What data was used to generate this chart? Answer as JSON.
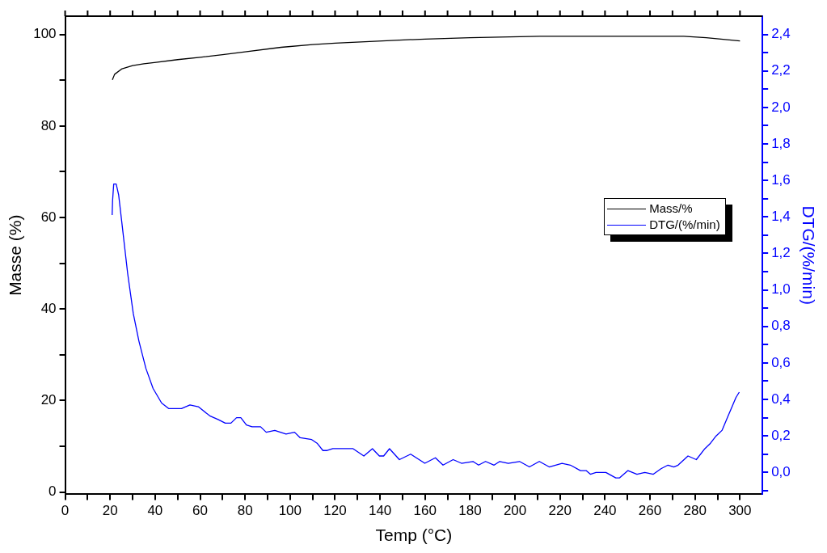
{
  "chart_data": {
    "type": "line",
    "xlabel": "Temp (°C)",
    "ylabel": "Masse (%)",
    "y2label": "DTG/(%/min)",
    "xlim": [
      0,
      310
    ],
    "xticks": [
      0,
      {
        "value": 10,
        "label": null
      },
      20,
      {
        "value": 30,
        "label": null
      },
      40,
      {
        "value": 50,
        "label": null
      },
      60,
      {
        "value": 70,
        "label": null
      },
      80,
      {
        "value": 90,
        "label": null
      },
      100,
      {
        "value": 110,
        "label": null
      },
      120,
      {
        "value": 130,
        "label": null
      },
      140,
      {
        "value": 150,
        "label": null
      },
      160,
      {
        "value": 170,
        "label": null
      },
      180,
      {
        "value": 190,
        "label": null
      },
      200,
      {
        "value": 210,
        "label": null
      },
      220,
      {
        "value": 230,
        "label": null
      },
      240,
      {
        "value": 250,
        "label": null
      },
      260,
      {
        "value": 270,
        "label": null
      },
      280,
      {
        "value": 290,
        "label": null
      },
      300
    ],
    "ylim": [
      -0.5,
      104
    ],
    "yticks": [
      0,
      {
        "value": 10,
        "label": null
      },
      20,
      {
        "value": 30,
        "label": null
      },
      40,
      {
        "value": 50,
        "label": null
      },
      60,
      {
        "value": 70,
        "label": null
      },
      80,
      {
        "value": 90,
        "label": null
      },
      100
    ],
    "y2lim": [
      -0.12,
      2.5
    ],
    "y2ticks": [
      {
        "value": -0.1,
        "label": null
      },
      {
        "value": 0,
        "label": "0,0"
      },
      {
        "value": 0.1,
        "label": null
      },
      {
        "value": 0.2,
        "label": "0,2"
      },
      {
        "value": 0.3,
        "label": null
      },
      {
        "value": 0.4,
        "label": "0,4"
      },
      {
        "value": 0.5,
        "label": null
      },
      {
        "value": 0.6,
        "label": "0,6"
      },
      {
        "value": 0.7,
        "label": null
      },
      {
        "value": 0.8,
        "label": "0,8"
      },
      {
        "value": 0.9,
        "label": null
      },
      {
        "value": 1.0,
        "label": "1,0"
      },
      {
        "value": 1.1,
        "label": null
      },
      {
        "value": 1.2,
        "label": "1,2"
      },
      {
        "value": 1.3,
        "label": null
      },
      {
        "value": 1.4,
        "label": "1,4"
      },
      {
        "value": 1.5,
        "label": null
      },
      {
        "value": 1.6,
        "label": "1,6"
      },
      {
        "value": 1.7,
        "label": null
      },
      {
        "value": 1.8,
        "label": "1,8"
      },
      {
        "value": 1.9,
        "label": null
      },
      {
        "value": 2.0,
        "label": "2,0"
      },
      {
        "value": 2.1,
        "label": null
      },
      {
        "value": 2.2,
        "label": "2,2"
      },
      {
        "value": 2.3,
        "label": null
      },
      {
        "value": 2.4,
        "label": "2,4"
      }
    ],
    "legend": "right",
    "marker": "none",
    "line_style": "solid",
    "series": [
      {
        "name": "Mass/%",
        "color": "#000000",
        "x": [
          21,
          22,
          25.3,
          30,
          35,
          40.4,
          50,
          60,
          70,
          80,
          96,
          110,
          120,
          141,
          160,
          180,
          211,
          240,
          275,
          285,
          300
        ],
        "values": [
          90.1,
          91.3,
          92.5,
          93.2,
          93.6,
          93.9,
          94.5,
          95.0,
          95.6,
          96.2,
          97.2,
          97.8,
          98.1,
          98.6,
          99.0,
          99.3,
          99.6,
          99.6,
          99.6,
          99.3,
          98.6
        ]
      },
      {
        "name": "DTG/(%/min)",
        "color": "#0000ff",
        "axis": "y2",
        "x": [
          20.9,
          21.1,
          21.6,
          22.7,
          23.8,
          25.3,
          27.8,
          30.3,
          32.8,
          35.9,
          39.1,
          42.9,
          46,
          51.7,
          55.5,
          59.2,
          64.3,
          68,
          71.2,
          73.7,
          76.2,
          78.1,
          80.6,
          83.1,
          85,
          86.9,
          89.4,
          93.2,
          98.2,
          102,
          104.5,
          109.6,
          112,
          114.6,
          116.5,
          119,
          125.9,
          128,
          132.8,
          136.6,
          139.7,
          141.6,
          144.2,
          148.6,
          153.6,
          159.9,
          164.6,
          168,
          172.5,
          176.2,
          181.3,
          183.8,
          186.9,
          190.7,
          193.2,
          197,
          202,
          206.4,
          210.8,
          215.2,
          220.9,
          224.6,
          229.1,
          231.6,
          233.5,
          236,
          240.4,
          244.8,
          246.5,
          250.2,
          254.2,
          257.7,
          261.5,
          264.9,
          268,
          270.6,
          272.5,
          276.9,
          280.6,
          284.4,
          286.9,
          289.4,
          292,
          295.1,
          298.2,
          299.7
        ],
        "values": [
          1.41,
          1.49,
          1.58,
          1.58,
          1.52,
          1.36,
          1.09,
          0.87,
          0.72,
          0.57,
          0.46,
          0.38,
          0.35,
          0.35,
          0.37,
          0.36,
          0.31,
          0.29,
          0.27,
          0.27,
          0.3,
          0.3,
          0.26,
          0.25,
          0.25,
          0.25,
          0.22,
          0.23,
          0.21,
          0.22,
          0.19,
          0.18,
          0.16,
          0.12,
          0.12,
          0.13,
          0.13,
          0.13,
          0.09,
          0.13,
          0.09,
          0.09,
          0.13,
          0.07,
          0.1,
          0.05,
          0.08,
          0.04,
          0.07,
          0.05,
          0.06,
          0.04,
          0.06,
          0.04,
          0.06,
          0.05,
          0.06,
          0.03,
          0.06,
          0.03,
          0.05,
          0.04,
          0.01,
          0.01,
          -0.01,
          0.0,
          0.0,
          -0.03,
          -0.03,
          0.01,
          -0.01,
          0.0,
          -0.01,
          0.02,
          0.04,
          0.03,
          0.04,
          0.09,
          0.07,
          0.13,
          0.16,
          0.2,
          0.23,
          0.32,
          0.41,
          0.44
        ]
      }
    ]
  }
}
